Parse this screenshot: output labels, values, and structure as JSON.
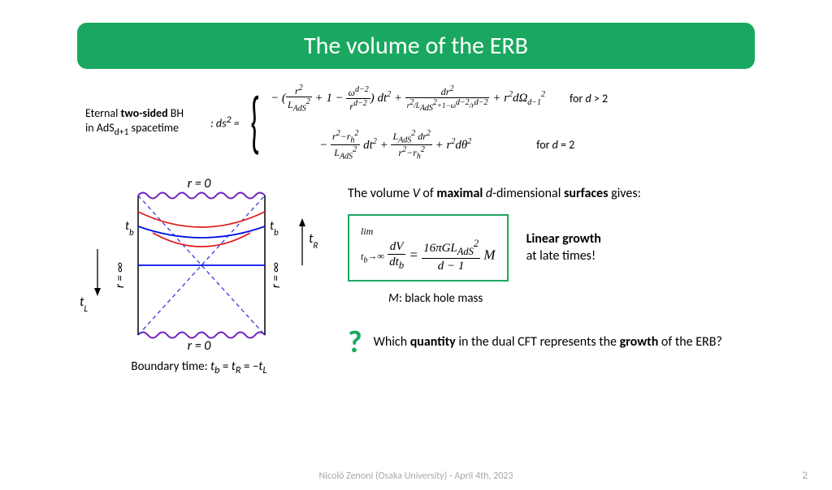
{
  "title": "The volume of the ERB",
  "title_bg": "#1aa860",
  "title_color": "#ffffff",
  "metric": {
    "label_line1": "Eternal <b>two-sided</b> BH",
    "label_line2": "in AdS<sub>d+1</sub> spacetime",
    "prefix": ": <i>ds</i><sup>2</sup> =",
    "case1": {
      "formula": "− (<span class='frac'><span class='num'><i>r</i><sup>2</sup></span><span class='den'><i>L</i><sub>AdS</sub><sup>2</sup></span></span> + 1 − <span class='frac'><span class='num'><i>ω</i><sup>d−2</sup></span><span class='den'><i>r</i><sup>d−2</sup></span></span>) <i>dt</i><sup>2</sup> + <span class='frac'><span class='num'><i>dr</i><sup>2</sup></span><span class='den'><span style='font-size:9px'><i>r</i><sup>2</sup>/<i>L</i><sub>AdS</sub><sup>2</sup>+1−<i>ω</i><sup>d−2</sup>/<i>r</i><sup>d−2</sup></span></span></span> + <i>r</i><sup>2</sup><i>dΩ</i><sub>d−1</sub><sup>2</sup>",
      "cond": "for <i>d</i> > 2"
    },
    "case2": {
      "formula": "− <span class='frac'><span class='num'><i>r</i><sup>2</sup>−<i>r</i><sub>h</sub><sup>2</sup></span><span class='den'><i>L</i><sub>AdS</sub><sup>2</sup></span></span> <i>dt</i><sup>2</sup> + <span class='frac'><span class='num'><i>L</i><sub>AdS</sub><sup>2</sup> <i>dr</i><sup>2</sup></span><span class='den'><i>r</i><sup>2</sup>−<i>r</i><sub>h</sub><sup>2</sup></span></span> + <i>r</i><sup>2</sup><i>dθ</i><sup>2</sup>",
      "cond": "for <i>d</i> = 2"
    }
  },
  "diagram": {
    "r0_top": "r = 0",
    "r0_bottom": "r = 0",
    "tb_left": "t_b",
    "tb_right": "t_b",
    "tR": "t_R",
    "tL": "t_L",
    "r_inf_left": "r = ∞",
    "r_inf_right": "r = ∞",
    "boundary_caption": "Boundary time: <i>t<sub>b</sub></i> = <i>t<sub>R</sub></i> = −<i>t<sub>L</sub></i>",
    "colors": {
      "box": "#000000",
      "diagonal": "#3838e0",
      "blue_curve": "#0010e8",
      "red_curve": "#e01a1a",
      "wavy": "#7020c0"
    }
  },
  "right": {
    "surface_text": "The volume <i>V</i> of <b>maximal</b> <i>d</i>-dimensional <b>surfaces</b> gives:",
    "growth_formula": "<span style='font-size:12px'>lim<br><i>t<sub>b</sub></i>→∞</span> <span class='frac bigfrac'><span class='num'><i>dV</i></span><span class='den'><i>dt<sub>b</sub></i></span></span> = <span class='frac bigfrac'><span class='num'>16π<i>GL</i><sub>AdS</sub><sup>2</sup></span><span class='den'><i>d</i> − 1</span></span> <i>M</i>",
    "growth_note_line1": "Linear growth",
    "growth_note_line2": "at late times!",
    "mass_note": "<i>M</i>: black hole mass",
    "question_mark": "?",
    "question_text": "Which <b>quantity</b> in the dual CFT represents the <b>growth</b> of the ERB?"
  },
  "footer": "Nicolò Zenoni (Osaka University) - April 4th, 2023",
  "page_number": "2"
}
